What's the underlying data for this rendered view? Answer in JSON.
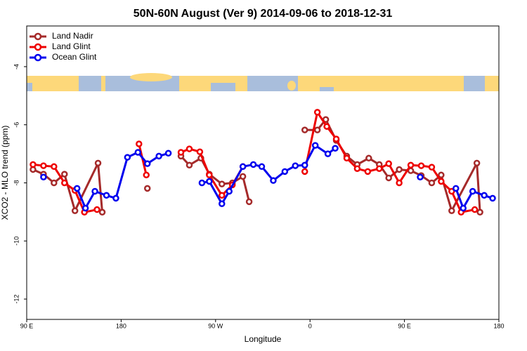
{
  "chart_data": {
    "type": "line",
    "title": "50N-60N August (Ver 9)   2014-09-06 to 2018-12-31",
    "x_label": "Longitude",
    "y_label": "XCO2 - MLO trend (ppm)",
    "xlim": [
      90,
      540
    ],
    "xticks": [
      {
        "value": 90,
        "label": "90 E"
      },
      {
        "value": 180,
        "label": "180"
      },
      {
        "value": 270,
        "label": "90 W"
      },
      {
        "value": 360,
        "label": "0"
      },
      {
        "value": 450,
        "label": "90 E"
      },
      {
        "value": 540,
        "label": "180"
      }
    ],
    "ylim": [
      -12.7,
      -2.6
    ],
    "yticks": [
      -4,
      -6,
      -8,
      -10,
      -12
    ],
    "legend": "top-left",
    "series": [
      {
        "name": "Land Nadir",
        "color": "#a52a2a",
        "x": [
          96,
          106,
          116,
          126,
          136,
          158,
          162,
          185,
          205,
          220,
          237,
          245,
          256,
          264,
          276,
          286,
          296,
          302,
          330,
          355,
          367,
          375,
          385,
          395,
          405,
          416,
          426,
          435,
          445,
          456,
          466,
          476,
          485,
          495,
          519,
          522
        ],
        "values": [
          -7.54,
          -7.7,
          -8.0,
          -7.7,
          -8.96,
          -7.32,
          -9.01,
          null,
          -8.19,
          null,
          -7.08,
          -7.39,
          -7.15,
          -7.7,
          -8.04,
          -8.0,
          -7.78,
          -8.65,
          null,
          -6.18,
          -6.18,
          -5.82,
          -6.54,
          -7.08,
          -7.37,
          -7.15,
          -7.37,
          -7.83,
          -7.54,
          -7.58,
          -7.75,
          -8.0,
          -7.73,
          -8.96,
          -7.32,
          -9.01
        ]
      },
      {
        "name": "Land Glint",
        "color": "#ee0000",
        "x": [
          96,
          106,
          116,
          126,
          136,
          145,
          157,
          180,
          197,
          204,
          230,
          237,
          245,
          255,
          264,
          276,
          286,
          296,
          330,
          355,
          367,
          376,
          385,
          395,
          405,
          415,
          426,
          435,
          445,
          456,
          466,
          476,
          485,
          495,
          504,
          517
        ],
        "values": [
          -7.37,
          -7.41,
          -7.44,
          -8.0,
          -8.26,
          -9.01,
          -8.92,
          null,
          -6.66,
          -7.73,
          null,
          -6.95,
          -6.83,
          -6.93,
          -7.73,
          -8.43,
          -8.07,
          -7.44,
          null,
          -7.61,
          -5.57,
          -6.06,
          -6.49,
          -7.15,
          -7.51,
          -7.61,
          -7.51,
          -7.34,
          -8.0,
          -7.39,
          -7.41,
          -7.46,
          -7.95,
          -8.29,
          -9.01,
          -8.92
        ]
      },
      {
        "name": "Ocean Glint",
        "color": "#0000ee",
        "x": [
          106,
          120,
          138,
          146,
          155,
          166,
          175,
          186,
          196,
          205,
          216,
          225,
          250,
          257,
          264,
          276,
          283,
          296,
          306,
          314,
          325,
          336,
          346,
          355,
          365,
          377,
          384,
          420,
          465,
          480,
          499,
          506,
          515,
          526,
          534
        ],
        "values": [
          -7.8,
          null,
          -8.19,
          -8.87,
          -8.29,
          -8.43,
          -8.53,
          -7.12,
          -6.95,
          -7.34,
          -7.08,
          -6.98,
          null,
          -8.0,
          -7.95,
          -8.72,
          -8.29,
          -7.44,
          -7.37,
          -7.44,
          -7.92,
          -7.61,
          -7.41,
          -7.39,
          -6.71,
          -7.0,
          -6.81,
          null,
          -7.8,
          null,
          -8.19,
          -8.87,
          -8.29,
          -8.43,
          -8.53
        ]
      }
    ]
  }
}
